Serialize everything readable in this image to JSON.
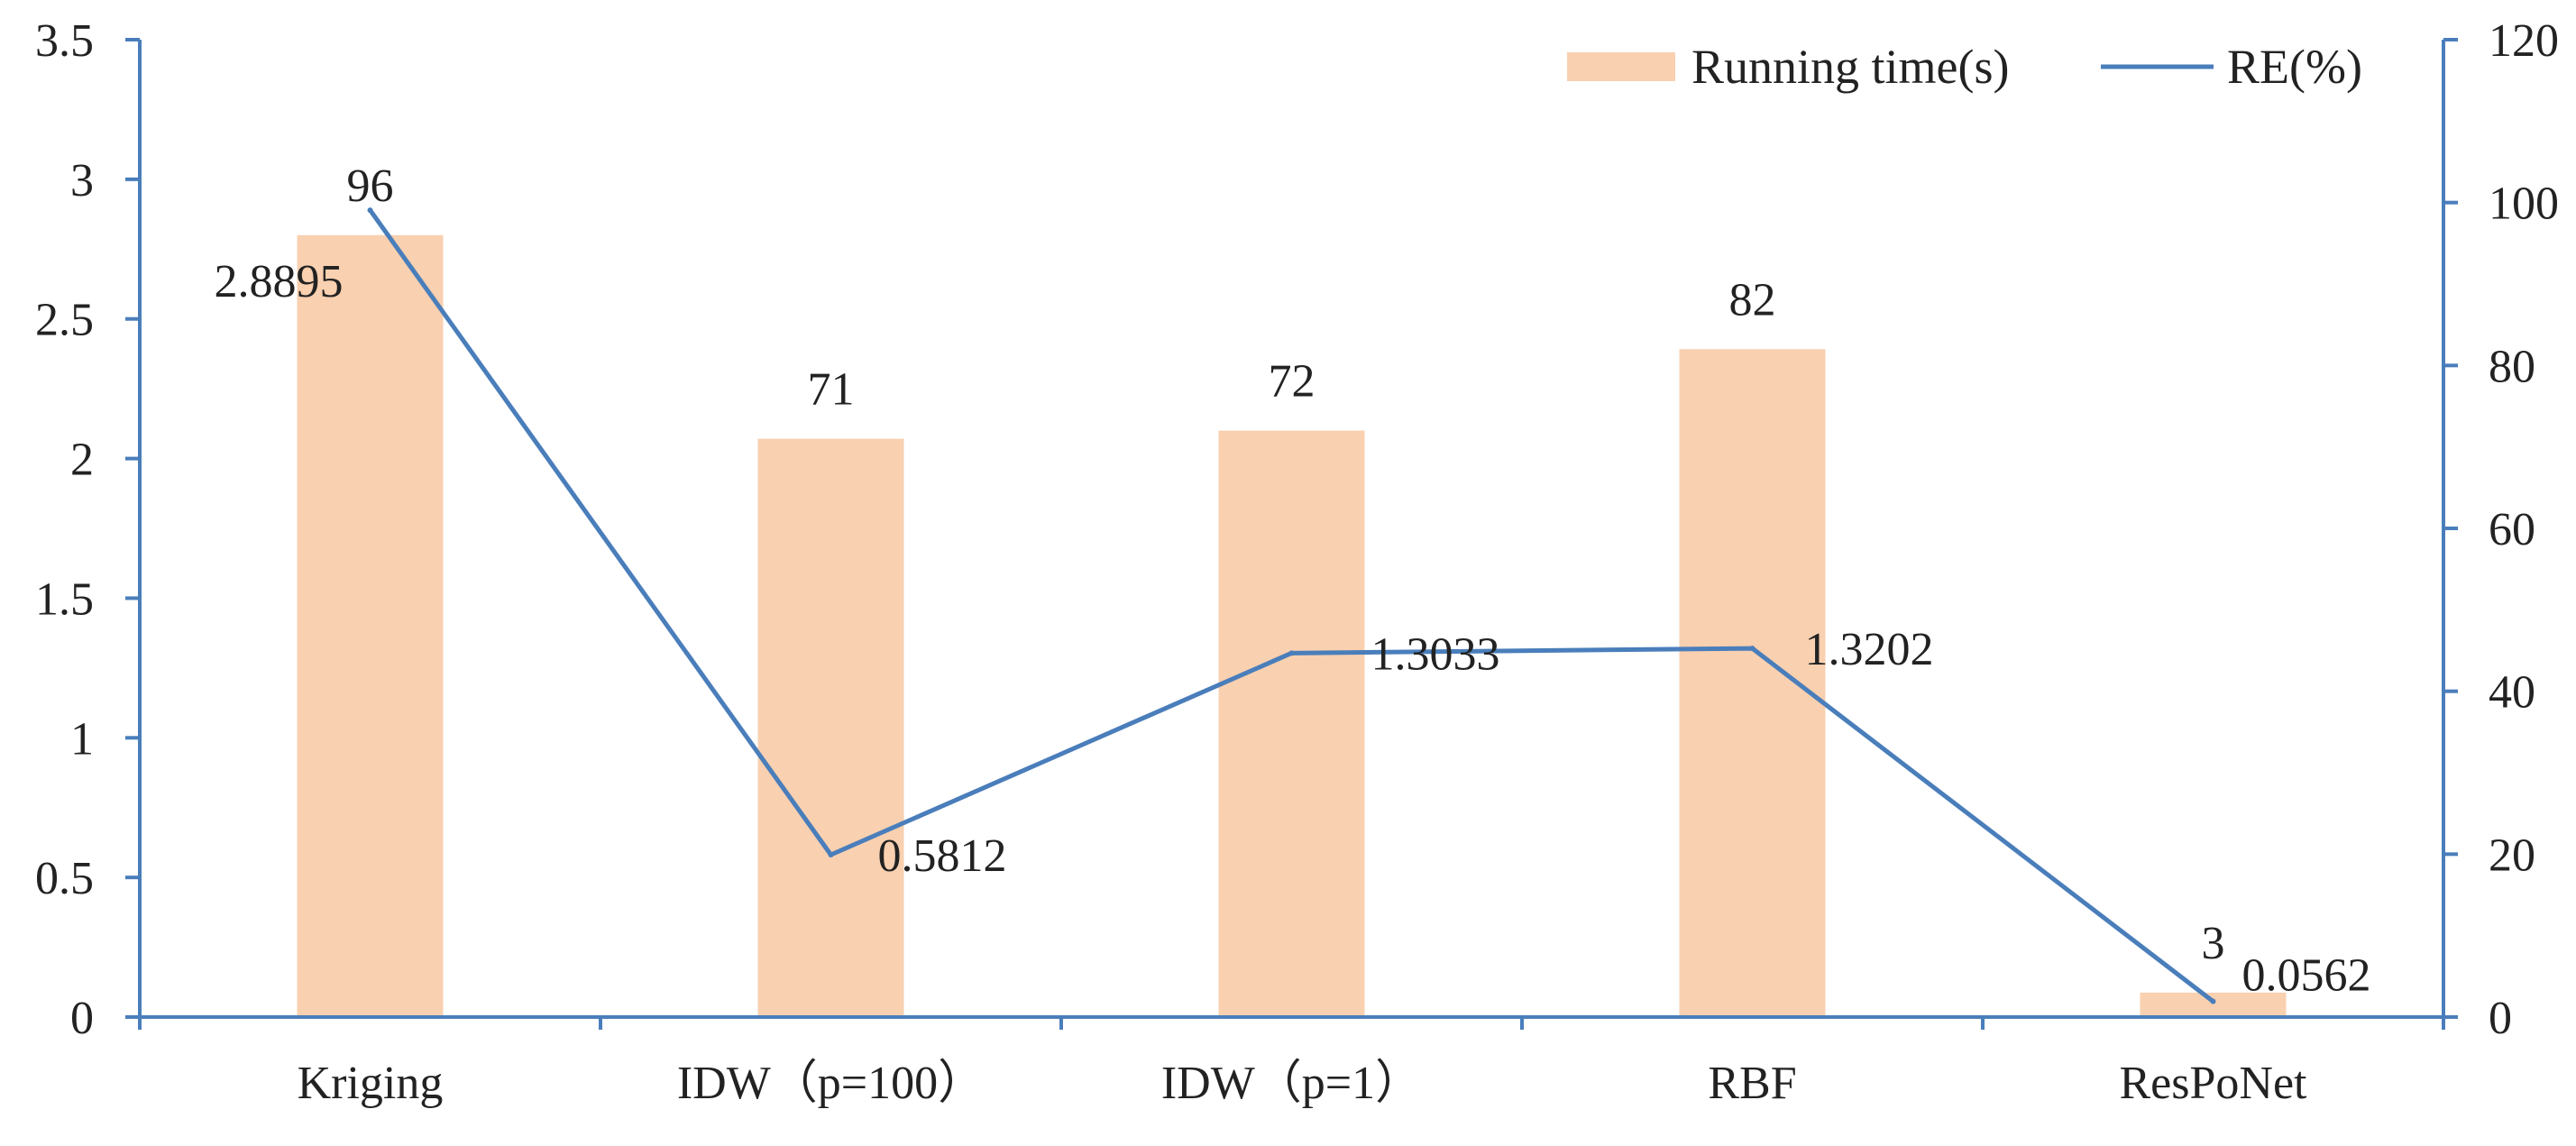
{
  "chart_data": {
    "type": "bar+line",
    "title": "",
    "categories": [
      "Kriging",
      "IDW（p=100）",
      "IDW（p=1）",
      "RBF",
      "ResPoNet"
    ],
    "series": [
      {
        "name": "Running time(s)",
        "type": "bar",
        "axis": "right",
        "values": [
          96,
          71,
          72,
          82,
          3
        ],
        "data_labels": [
          "96",
          "71",
          "72",
          "82",
          "3"
        ],
        "color": "#F9D0B0"
      },
      {
        "name": "RE(%)",
        "type": "line",
        "axis": "left",
        "values": [
          2.8895,
          0.5812,
          1.3033,
          1.3202,
          0.0562
        ],
        "data_labels": [
          "2.8895",
          "0.5812",
          "1.3033",
          "1.3202",
          "0.0562"
        ],
        "color": "#4A7EBB"
      }
    ],
    "left_axis": {
      "ylim": [
        0,
        3.5
      ],
      "ticks": [
        "0",
        "0.5",
        "1",
        "1.5",
        "2",
        "2.5",
        "3",
        "3.5"
      ]
    },
    "right_axis": {
      "ylim": [
        0,
        120
      ],
      "ticks": [
        "0",
        "20",
        "40",
        "60",
        "80",
        "100",
        "120"
      ]
    },
    "legend": {
      "position": "top-right",
      "bar_entry": "Running time(s)",
      "line_entry": "RE(%)"
    },
    "axis_color": "#4A7EBB",
    "grid": false
  }
}
